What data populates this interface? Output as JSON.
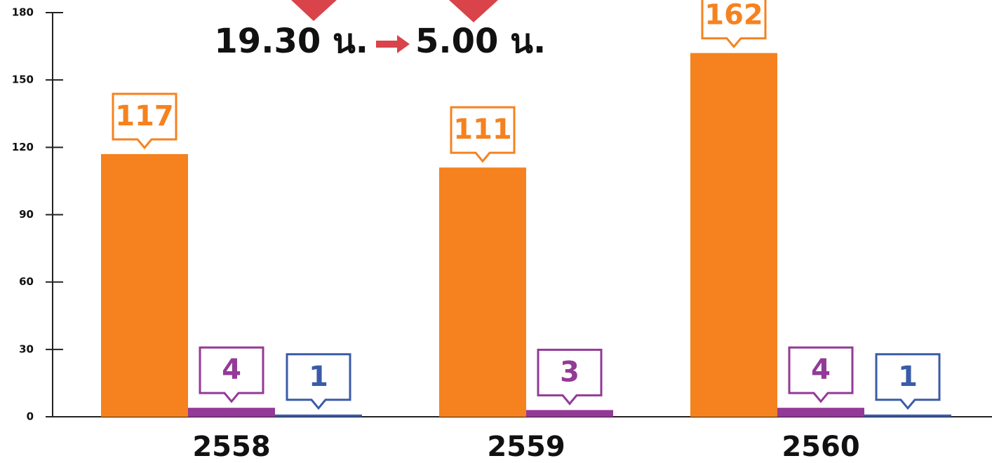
{
  "chart_data": {
    "type": "bar",
    "annotations": [
      "19.30 น.",
      "5.00 น."
    ],
    "categories": [
      "2558",
      "2559",
      "2560"
    ],
    "series": [
      {
        "color": "#f5821f",
        "values": [
          117,
          111,
          162
        ]
      },
      {
        "color": "#933a96",
        "values": [
          4,
          3,
          4
        ]
      },
      {
        "color": "#3a5ba8",
        "values": [
          1,
          null,
          1
        ]
      }
    ],
    "ylim": [
      0,
      180
    ],
    "yticks": [
      0,
      30,
      60,
      90,
      120,
      150,
      180
    ],
    "grid": false
  }
}
